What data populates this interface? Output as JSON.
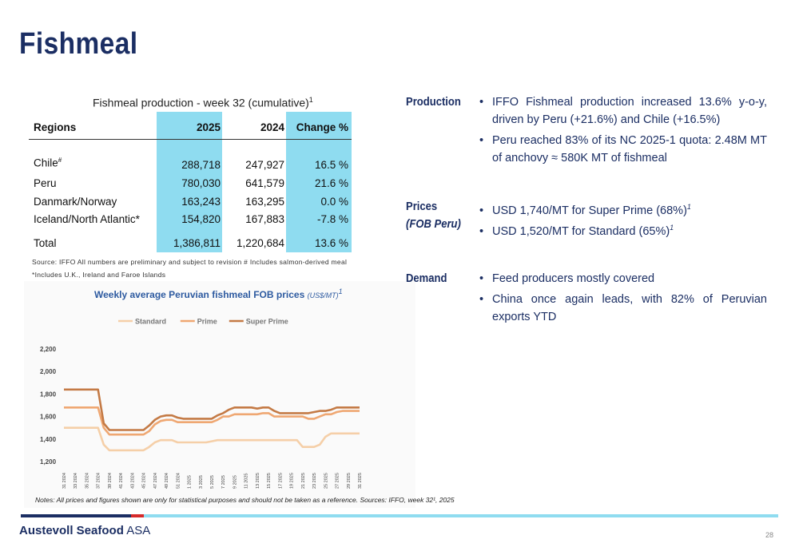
{
  "title": "Fishmeal",
  "table": {
    "title": "Fishmeal production - week 32 (cumulative)",
    "title_sup": "1",
    "headers": [
      "Regions",
      "2025",
      "2024",
      "Change %"
    ],
    "rows": [
      {
        "region": "Chile",
        "sup": "#",
        "v2025": "288,718",
        "v2024": "247,927",
        "change": "16.5 %"
      },
      {
        "region": "Peru",
        "sup": "",
        "v2025": "780,030",
        "v2024": "641,579",
        "change": "21.6 %"
      },
      {
        "region": "Danmark/Norway",
        "sup": "",
        "v2025": "163,243",
        "v2024": "163,295",
        "change": "0.0 %"
      },
      {
        "region": "Iceland/North Atlantic*",
        "sup": "",
        "v2025": "154,820",
        "v2024": "167,883",
        "change": "-7.8 %"
      }
    ],
    "total": {
      "region": "Total",
      "v2025": "1,386,811",
      "v2024": "1,220,684",
      "change": "13.6 %"
    },
    "source_line1": "Source: IFFO All numbers are preliminary and subject to revision # Includes salmon-derived meal",
    "source_line2": "*Includes U.K., Ireland and Faroe Islands",
    "shade_color": "#8fdcf0"
  },
  "chart_title": "Weekly average Peruvian fishmeal FOB prices",
  "chart_unit": "(US$/MT)",
  "chart_unit_sup": "1",
  "chart_notes": "Notes: All prices and figures shown are only for statistical purposes and should not be taken as a reference. Sources: IFFO, week 32¹, 2025",
  "chart_data": {
    "type": "line",
    "legend_position": "top",
    "ylim": [
      1200,
      2200
    ],
    "yticks": [
      "1,200",
      "1,400",
      "1,600",
      "1,800",
      "2,000",
      "2,200"
    ],
    "x": [
      "31 2024",
      "32 2024",
      "33 2024",
      "34 2024",
      "35 2024",
      "36 2024",
      "37 2024",
      "38 2024",
      "39 2024",
      "40 2024",
      "41 2024",
      "42 2024",
      "43 2024",
      "44 2024",
      "45 2024",
      "46 2024",
      "47 2024",
      "48 2024",
      "49 2024",
      "50 2024",
      "51 2024",
      "52 2024",
      "1 2025",
      "2 2025",
      "3 2025",
      "4 2025",
      "5 2025",
      "6 2025",
      "7 2025",
      "8 2025",
      "9 2025",
      "10 2025",
      "11 2025",
      "12 2025",
      "13 2025",
      "14 2025",
      "15 2025",
      "16 2025",
      "17 2025",
      "18 2025",
      "19 2025",
      "20 2025",
      "21 2025",
      "22 2025",
      "23 2025",
      "24 2025",
      "25 2025",
      "26 2025",
      "27 2025",
      "28 2025",
      "29 2025",
      "30 2025",
      "31 2025"
    ],
    "xtick_labels": [
      "31 2024",
      "33 2024",
      "35 2024",
      "37 2024",
      "39 2024",
      "41 2024",
      "43 2024",
      "45 2024",
      "47 2024",
      "49 2024",
      "51 2024",
      "1 2025",
      "3 2025",
      "5 2025",
      "7 2025",
      "9 2025",
      "11 2025",
      "13 2025",
      "15 2025",
      "17 2025",
      "19 2025",
      "21 2025",
      "23 2025",
      "25 2025",
      "27 2025",
      "29 2025",
      "31 2025"
    ],
    "series": [
      {
        "name": "Standard",
        "color": "#f5cfa8",
        "values": [
          1500,
          1500,
          1500,
          1500,
          1500,
          1500,
          1500,
          1350,
          1300,
          1300,
          1300,
          1300,
          1300,
          1300,
          1300,
          1330,
          1370,
          1390,
          1390,
          1390,
          1370,
          1370,
          1370,
          1370,
          1370,
          1370,
          1380,
          1390,
          1390,
          1390,
          1390,
          1390,
          1390,
          1390,
          1390,
          1390,
          1390,
          1390,
          1390,
          1390,
          1390,
          1390,
          1330,
          1330,
          1330,
          1350,
          1420,
          1450,
          1450,
          1450,
          1450,
          1450,
          1450
        ]
      },
      {
        "name": "Prime",
        "color": "#efa772",
        "values": [
          1680,
          1680,
          1680,
          1680,
          1680,
          1680,
          1680,
          1500,
          1440,
          1440,
          1440,
          1440,
          1440,
          1440,
          1440,
          1470,
          1530,
          1560,
          1570,
          1570,
          1550,
          1550,
          1550,
          1550,
          1550,
          1550,
          1550,
          1570,
          1600,
          1600,
          1620,
          1620,
          1620,
          1620,
          1620,
          1630,
          1630,
          1600,
          1600,
          1600,
          1600,
          1600,
          1600,
          1580,
          1580,
          1600,
          1620,
          1620,
          1640,
          1650,
          1650,
          1650,
          1650
        ]
      },
      {
        "name": "Super Prime",
        "color": "#c47a45",
        "values": [
          1840,
          1840,
          1840,
          1840,
          1840,
          1840,
          1840,
          1540,
          1480,
          1480,
          1480,
          1480,
          1480,
          1480,
          1480,
          1520,
          1570,
          1600,
          1610,
          1610,
          1590,
          1580,
          1580,
          1580,
          1580,
          1580,
          1580,
          1610,
          1630,
          1660,
          1680,
          1680,
          1680,
          1680,
          1670,
          1680,
          1680,
          1650,
          1630,
          1630,
          1630,
          1630,
          1630,
          1630,
          1640,
          1650,
          1650,
          1660,
          1680,
          1680,
          1680,
          1680,
          1680
        ]
      }
    ]
  },
  "sections": [
    {
      "label": "Production",
      "label2": "",
      "bullets": [
        {
          "text": "IFFO Fishmeal production increased 13.6% y-o-y, driven by Peru (+21.6%) and Chile (+16.5%)",
          "sup": ""
        },
        {
          "text": "Peru reached 83% of its NC 2025-1 quota: 2.48M MT of anchovy ≈ 580K MT of fishmeal",
          "sup": ""
        }
      ]
    },
    {
      "label": "Prices",
      "label2": "(FOB Peru)",
      "bullets": [
        {
          "text": "USD 1,740/MT for Super Prime (68%)",
          "sup": "1"
        },
        {
          "text": "USD 1,520/MT for Standard (65%)",
          "sup": "1"
        }
      ]
    },
    {
      "label": "Demand",
      "label2": "",
      "bullets": [
        {
          "text": "Feed producers mostly covered",
          "sup": ""
        },
        {
          "text": "China once again leads, with 82% of Peruvian exports YTD",
          "sup": ""
        }
      ]
    }
  ],
  "bullet_glyph": "•",
  "footer": {
    "brand": "Austevoll Seafood",
    "brand_suffix": "ASA",
    "page": "28"
  },
  "colors": {
    "navy": "#1b2e63",
    "red": "#d62b2b",
    "cyan": "#8fdcf0",
    "chart_title": "#2d5aa0"
  }
}
